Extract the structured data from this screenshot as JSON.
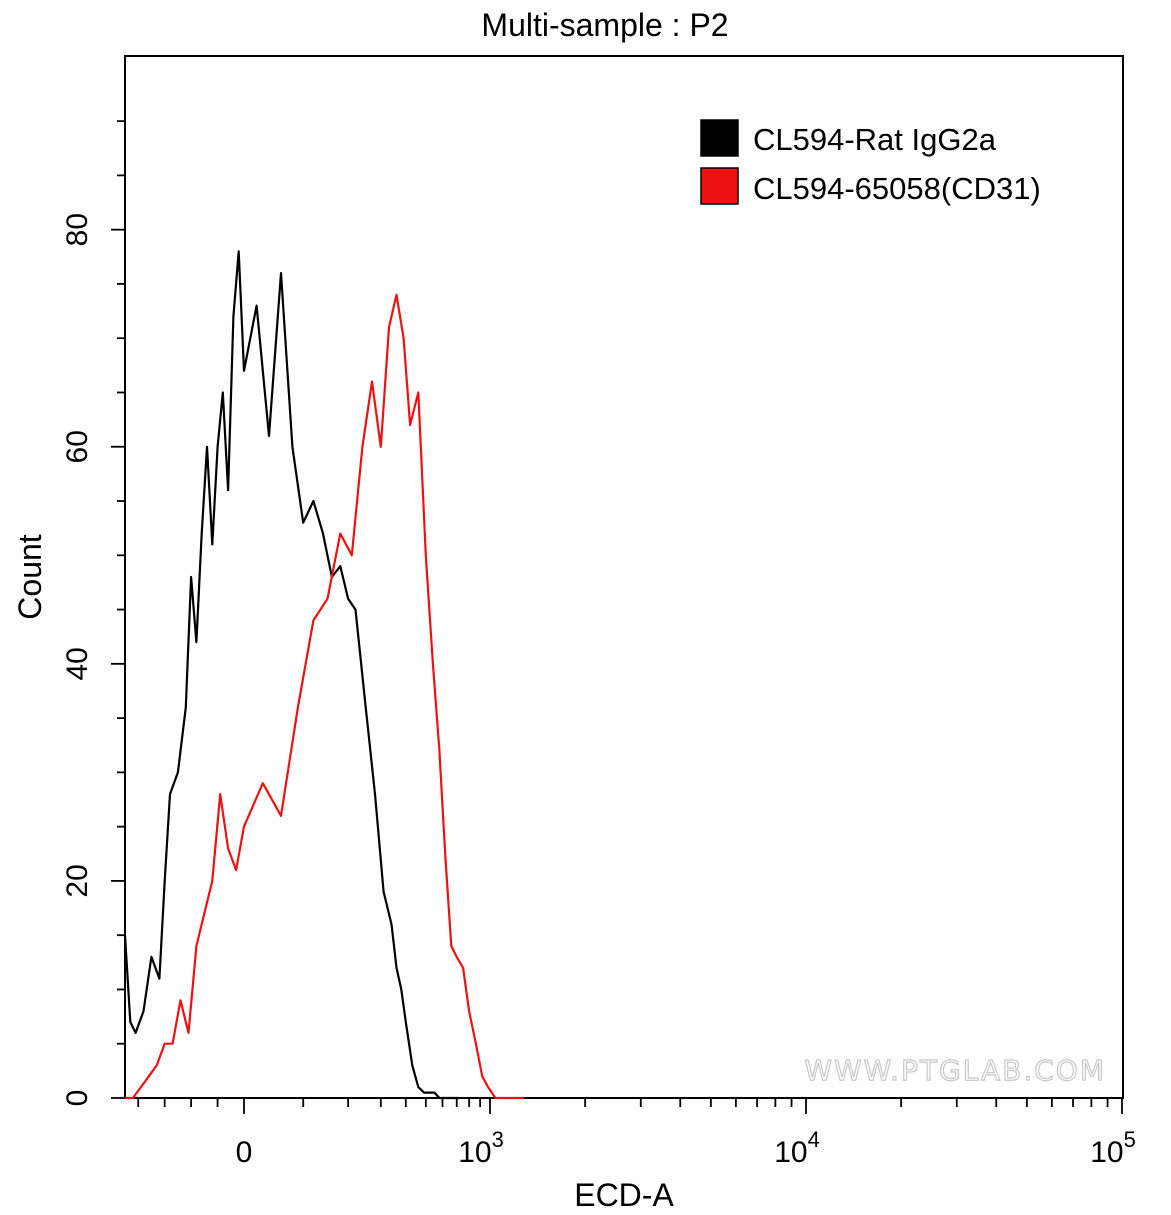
{
  "chart_data": {
    "type": "area",
    "title": "Multi-sample : P2",
    "xlabel": "ECD-A",
    "ylabel": "Count",
    "x_scale": "biexponential",
    "xlim": [
      -450,
      100000
    ],
    "ylim": [
      0,
      96
    ],
    "grid": false,
    "legend_position": "top-right",
    "x_ticks": [
      {
        "value": 0,
        "label": "0",
        "exp": ""
      },
      {
        "value": 1000,
        "label": "10",
        "exp": "3"
      },
      {
        "value": 10000,
        "label": "10",
        "exp": "4"
      },
      {
        "value": 100000,
        "label": "10",
        "exp": "5"
      }
    ],
    "y_ticks": [
      0,
      20,
      40,
      60,
      80
    ],
    "series": [
      {
        "name": "CL594-Rat IgG2a",
        "color": "#000000",
        "x": [
          -450,
          -430,
          -410,
          -380,
          -350,
          -320,
          -300,
          -280,
          -250,
          -220,
          -200,
          -180,
          -160,
          -140,
          -120,
          -100,
          -80,
          -60,
          -40,
          -20,
          0,
          20,
          40,
          60,
          80,
          100,
          120,
          140,
          160,
          180,
          200,
          220,
          250,
          280,
          310,
          340,
          360,
          380,
          400,
          430,
          460,
          490,
          520,
          550,
          580,
          610,
          640,
          680,
          720
        ],
        "y": [
          15,
          7,
          6,
          8,
          13,
          11,
          20,
          28,
          30,
          36,
          48,
          42,
          52,
          60,
          51,
          60,
          65,
          56,
          72,
          78,
          67,
          73,
          61,
          76,
          60,
          53,
          55,
          52,
          48,
          49,
          46,
          45,
          36,
          28,
          19,
          16,
          12,
          10,
          7,
          3,
          1,
          0.5,
          0.5,
          0.5,
          0,
          0,
          0,
          0,
          0
        ]
      },
      {
        "name": "CL594-65058(CD31)",
        "color": "#ee1111",
        "x": [
          -450,
          -420,
          -390,
          -360,
          -330,
          -300,
          -270,
          -240,
          -210,
          -180,
          -150,
          -120,
          -90,
          -60,
          -30,
          0,
          30,
          60,
          90,
          120,
          150,
          180,
          210,
          240,
          270,
          300,
          330,
          360,
          390,
          420,
          460,
          500,
          540,
          580,
          620,
          660,
          700,
          750,
          800,
          860,
          920,
          980,
          1040,
          1100,
          1160,
          1220,
          1280
        ],
        "y": [
          0,
          0,
          1,
          2,
          3,
          5,
          5,
          9,
          6,
          14,
          17,
          20,
          28,
          23,
          21,
          25,
          29,
          26,
          36,
          44,
          46,
          52,
          50,
          60,
          66,
          60,
          71,
          74,
          70,
          62,
          65,
          50,
          40,
          32,
          22,
          14,
          13,
          12,
          8,
          5,
          2,
          1,
          0,
          0,
          0,
          0,
          0
        ]
      }
    ],
    "watermark": "WWW.PTGLAB.COM"
  }
}
